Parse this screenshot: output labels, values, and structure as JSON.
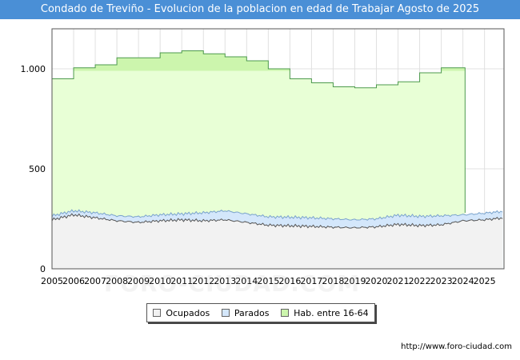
{
  "header": {
    "title": "Condado de Treviño - Evolucion de la poblacion en edad de Trabajar Agosto de 2025"
  },
  "footer": {
    "url": "http://www.foro-ciudad.com",
    "watermark": "FORO-CIUDAD.COM"
  },
  "colors": {
    "title_bg": "#4a8fd6",
    "ocupados_fill": "#f2f2f2",
    "ocupados_line": "#555555",
    "parados_fill": "#d4e7fb",
    "parados_line": "#7aa3cc",
    "hab_fill": "#e8ffd6",
    "hab_fill_band": "#ccf5ad",
    "hab_line": "#4d9a4d",
    "grid": "#e0e0e0"
  },
  "chart_data": {
    "type": "area",
    "title": "Condado de Treviño - Evolucion de la poblacion en edad de Trabajar Agosto de 2025",
    "xlabel": "",
    "ylabel": "",
    "xlim": [
      2005,
      2025.9
    ],
    "ylim": [
      0,
      1200
    ],
    "y_ticks": [
      0,
      500,
      1000
    ],
    "y_tick_labels": [
      "0",
      "500",
      "1.000"
    ],
    "x_ticks": [
      2005,
      2006,
      2007,
      2008,
      2009,
      2010,
      2011,
      2012,
      2013,
      2014,
      2015,
      2016,
      2017,
      2018,
      2019,
      2020,
      2021,
      2022,
      2023,
      2024,
      2025
    ],
    "grid": true,
    "legend": {
      "position": "bottom-center",
      "items": [
        {
          "label": "Ocupados",
          "color": "#f2f2f2"
        },
        {
          "label": "Parados",
          "color": "#d4e7fb"
        },
        {
          "label": "Hab. entre 16-64",
          "color": "#ccf5ad"
        }
      ]
    },
    "series": [
      {
        "name": "Hab. entre 16-64",
        "kind": "step",
        "x": [
          2005,
          2006,
          2007,
          2008,
          2009,
          2010,
          2011,
          2012,
          2013,
          2014,
          2015,
          2016,
          2017,
          2018,
          2019,
          2020,
          2021,
          2022,
          2023
        ],
        "values": [
          950,
          1005,
          1020,
          1055,
          1055,
          1080,
          1090,
          1075,
          1060,
          1040,
          1000,
          950,
          930,
          910,
          905,
          920,
          935,
          980,
          1005
        ],
        "end_x": 2024.1
      },
      {
        "name": "Parados",
        "x": [
          2005,
          2006,
          2007,
          2008,
          2009,
          2010,
          2011,
          2012,
          2013,
          2014,
          2015,
          2016,
          2017,
          2018,
          2019,
          2020,
          2021,
          2022,
          2023,
          2024,
          2025,
          2025.9
        ],
        "values": [
          265,
          290,
          280,
          265,
          260,
          270,
          275,
          280,
          290,
          275,
          260,
          258,
          255,
          250,
          245,
          250,
          268,
          262,
          265,
          270,
          278,
          288
        ]
      },
      {
        "name": "Ocupados",
        "x": [
          2005,
          2006,
          2007,
          2008,
          2009,
          2010,
          2011,
          2012,
          2013,
          2014,
          2015,
          2016,
          2017,
          2018,
          2019,
          2020,
          2021,
          2022,
          2023,
          2024,
          2025,
          2025.9
        ],
        "values": [
          245,
          270,
          255,
          240,
          232,
          240,
          245,
          240,
          245,
          232,
          218,
          215,
          212,
          208,
          205,
          210,
          222,
          216,
          220,
          240,
          245,
          255
        ]
      }
    ]
  }
}
